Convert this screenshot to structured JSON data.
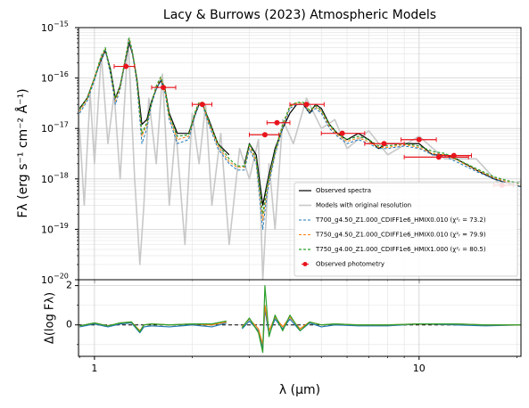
{
  "chart_data": [
    {
      "type": "line",
      "title": "Lacy & Burrows (2023) Atmospheric Models",
      "ylabel": "Fλ (erg s⁻¹ cm⁻² Å⁻¹)",
      "xlog": true,
      "ylog": true,
      "grid": true,
      "legend": "lower right",
      "xlim": [
        0.893,
        20.6
      ],
      "ylim": [
        1e-20,
        1e-15
      ],
      "xticks": [
        1,
        10
      ],
      "xminor": [
        0.9,
        2,
        3,
        4,
        5,
        6,
        7,
        8,
        9,
        20
      ],
      "yticks": [
        {
          "value": 1e-20,
          "label": "10",
          "power": "−20"
        },
        {
          "value": 1e-19,
          "label": "10",
          "power": "−19"
        },
        {
          "value": 1e-18,
          "label": "10",
          "power": "−18"
        },
        {
          "value": 1e-17,
          "label": "10",
          "power": "−17"
        },
        {
          "value": 1e-16,
          "label": "10",
          "power": "−16"
        },
        {
          "value": 1e-15,
          "label": "10",
          "power": "−15"
        }
      ],
      "yminor": [
        2e-20,
        3e-20,
        4e-20,
        5e-20,
        6e-20,
        7e-20,
        8e-20,
        9e-20,
        2e-19,
        3e-19,
        4e-19,
        5e-19,
        6e-19,
        7e-19,
        8e-19,
        9e-19,
        2e-18,
        3e-18,
        4e-18,
        5e-18,
        6e-18,
        7e-18,
        8e-18,
        9e-18,
        2e-17,
        3e-17,
        4e-17,
        5e-17,
        6e-17,
        7e-17,
        8e-17,
        9e-17,
        2e-16,
        3e-16,
        4e-16,
        5e-16,
        6e-16,
        7e-16,
        8e-16,
        9e-16
      ],
      "x": [
        0.9,
        0.95,
        1.0,
        1.04,
        1.08,
        1.12,
        1.16,
        1.2,
        1.25,
        1.28,
        1.31,
        1.35,
        1.4,
        1.45,
        1.5,
        1.55,
        1.6,
        1.65,
        1.7,
        1.8,
        1.95,
        2.05,
        2.1,
        2.15,
        2.25,
        2.4,
        2.6,
        2.75,
        2.9,
        3.0,
        3.15,
        3.3,
        3.4,
        3.6,
        3.8,
        4.0,
        4.2,
        4.4,
        4.6,
        4.8,
        5.0,
        5.3,
        5.6,
        6.0,
        6.5,
        7.0,
        7.5,
        8.0,
        9.0,
        10,
        11,
        12,
        13,
        15,
        17,
        19,
        20.6
      ],
      "series": [
        {
          "name": "Observed spectra",
          "color": "#000000",
          "width": 1.2,
          "values": [
            2.5e-17,
            4e-17,
            1e-16,
            2e-16,
            3.5e-16,
            1.5e-16,
            4e-17,
            7e-17,
            2.5e-16,
            5e-16,
            3e-16,
            1e-16,
            1.2e-17,
            1.5e-17,
            3.5e-17,
            6e-17,
            9e-17,
            6e-17,
            2e-17,
            8e-18,
            8e-18,
            2e-17,
            3e-17,
            3e-17,
            1.5e-17,
            5e-18,
            3e-18,
            null,
            2e-18,
            5e-18,
            3e-18,
            3e-19,
            8e-19,
            4e-18,
            1e-17,
            2e-17,
            3e-17,
            3e-17,
            2e-17,
            3e-17,
            2.5e-17,
            1.2e-17,
            8e-18,
            6e-18,
            8e-18,
            6e-18,
            4e-18,
            5e-18,
            5e-18,
            5e-18,
            3e-18,
            3e-18,
            2.5e-18,
            1.5e-18,
            1e-18,
            8e-19,
            7e-19
          ]
        },
        {
          "name": "Models with original resolution",
          "color": "#c8c8c8",
          "width": 1.6,
          "background": true,
          "x": [
            0.9,
            0.93,
            0.97,
            1.0,
            1.05,
            1.1,
            1.15,
            1.2,
            1.27,
            1.33,
            1.38,
            1.42,
            1.47,
            1.55,
            1.62,
            1.7,
            1.78,
            1.9,
            2.0,
            2.1,
            2.2,
            2.3,
            2.45,
            2.6,
            2.8,
            3.0,
            3.2,
            3.3,
            3.45,
            3.6,
            3.8,
            4.1,
            4.5,
            5.0,
            5.5,
            6.0,
            7.0,
            8.0,
            10,
            12,
            15,
            18,
            20.6
          ],
          "values": [
            1e-17,
            3e-19,
            5e-17,
            2e-18,
            3e-16,
            5e-18,
            5e-17,
            1e-18,
            6e-16,
            1e-18,
            2e-20,
            3e-19,
            4e-17,
            2e-18,
            1.2e-16,
            3e-19,
            1e-17,
            5e-20,
            2e-17,
            2e-18,
            3e-17,
            3e-19,
            8e-18,
            5e-20,
            4e-18,
            1e-18,
            6e-18,
            1e-20,
            2e-18,
            1e-19,
            1.5e-17,
            5e-18,
            4e-17,
            1e-17,
            1.5e-17,
            4e-18,
            9e-18,
            3e-18,
            7e-18,
            2.5e-18,
            2.5e-18,
            7e-19,
            9e-19
          ]
        },
        {
          "name": "T700_g4.50_Z1.000_CDIFF1e6_HMIX0.010 (χ²ᵣ = 73.2)",
          "color": "#1f77b4",
          "dash": true,
          "width": 1,
          "values": [
            2e-17,
            3.5e-17,
            9e-17,
            2e-16,
            3.5e-16,
            1.2e-16,
            3e-17,
            6e-17,
            2.5e-16,
            5.5e-16,
            3e-16,
            8e-17,
            5e-18,
            1e-17,
            3e-17,
            6e-17,
            9e-17,
            5e-17,
            1.5e-17,
            5e-18,
            6e-18,
            2e-17,
            3e-17,
            3e-17,
            1.2e-17,
            4e-18,
            2e-18,
            1.5e-18,
            1.5e-18,
            4e-18,
            2e-18,
            1e-19,
            5e-19,
            3e-18,
            1e-17,
            2.5e-17,
            3e-17,
            3e-17,
            2e-17,
            2.5e-17,
            2e-17,
            1e-17,
            7e-18,
            5e-18,
            6e-18,
            5e-18,
            4e-18,
            4e-18,
            4.5e-18,
            4e-18,
            3e-18,
            2.8e-18,
            2.2e-18,
            1.4e-18,
            1e-18,
            8e-19,
            7e-19
          ]
        },
        {
          "name": "T750_g4.50_Z1.000_CDIFF1e6_HMIX0.010 (χ²ᵣ = 79.9)",
          "color": "#ff7f0e",
          "dash": true,
          "width": 1,
          "values": [
            2.2e-17,
            3.8e-17,
            1e-16,
            2.2e-16,
            3.8e-16,
            1.3e-16,
            3.5e-17,
            6.5e-17,
            2.7e-16,
            6e-16,
            3.2e-16,
            9e-17,
            7e-18,
            1.2e-17,
            3.2e-17,
            6.5e-17,
            1e-16,
            5.5e-17,
            1.7e-17,
            6e-18,
            7e-18,
            2.2e-17,
            3.2e-17,
            3.2e-17,
            1.3e-17,
            4.5e-18,
            2.2e-18,
            1.7e-18,
            1.7e-18,
            4.5e-18,
            2.2e-18,
            1.5e-19,
            6e-19,
            3.2e-18,
            1.1e-17,
            2.7e-17,
            3.2e-17,
            3.2e-17,
            2.2e-17,
            2.7e-17,
            2.2e-17,
            1.1e-17,
            7.5e-18,
            5.5e-18,
            6.5e-18,
            5.5e-18,
            4.2e-18,
            4.2e-18,
            4.8e-18,
            4.2e-18,
            3.2e-18,
            3e-18,
            2.4e-18,
            1.5e-18,
            1.05e-18,
            8.5e-19,
            7.5e-19
          ]
        },
        {
          "name": "T750_g4.00_Z1.000_CDIFF1e6_HMIX1.000 (χ²ᵣ = 80.5)",
          "color": "#2ca02c",
          "dash": true,
          "width": 1.2,
          "values": [
            2.4e-17,
            4e-17,
            1e-16,
            2.3e-16,
            4e-16,
            1.4e-16,
            4e-17,
            7e-17,
            2.8e-16,
            6.2e-16,
            3.3e-16,
            1e-16,
            8e-18,
            1.3e-17,
            3.3e-17,
            7e-17,
            1.05e-16,
            6e-17,
            1.8e-17,
            7e-18,
            7.5e-18,
            2.3e-17,
            3.3e-17,
            3.3e-17,
            1.4e-17,
            5e-18,
            2.5e-18,
            1.8e-18,
            1.8e-18,
            5e-18,
            2.5e-18,
            2e-19,
            7e-19,
            3.5e-18,
            1.2e-17,
            2.8e-17,
            3.3e-17,
            3.3e-17,
            2.3e-17,
            2.8e-17,
            2.3e-17,
            1.2e-17,
            8e-18,
            6e-18,
            7e-18,
            6e-18,
            4.5e-18,
            4.5e-18,
            5e-18,
            4.5e-18,
            3.5e-18,
            3.2e-18,
            2.5e-18,
            1.6e-18,
            1.1e-18,
            9e-19,
            8e-19
          ]
        }
      ],
      "photometry": {
        "name": "Observed photometry",
        "color": "#e8141c",
        "x": [
          1.25,
          1.63,
          2.15,
          3.35,
          3.65,
          4.5,
          5.8,
          7.8,
          10.0,
          11.5,
          12.8,
          18.0
        ],
        "values": [
          1.7e-16,
          6.5e-17,
          3e-17,
          7.5e-18,
          1.3e-17,
          3e-17,
          8e-18,
          5e-18,
          6e-18,
          2.7e-18,
          2.9e-18,
          7.5e-19
        ],
        "xmin": [
          1.15,
          1.5,
          2.0,
          3.0,
          3.4,
          4.0,
          5.0,
          6.8,
          8.8,
          9.0,
          11.5,
          17.0
        ],
        "xmax": [
          1.33,
          1.78,
          2.3,
          3.7,
          4.0,
          5.1,
          6.8,
          9.0,
          11.3,
          14.2,
          14.5,
          19.5
        ]
      }
    },
    {
      "type": "line",
      "ylabel": "Δ(log Fλ)",
      "xlabel": "λ (μm)",
      "xlog": true,
      "ylog": false,
      "grid": true,
      "show_xtick_labels": true,
      "reference_line": 0,
      "xlim": [
        0.893,
        20.6
      ],
      "ylim": [
        -1.6,
        2.3
      ],
      "xticks": [
        1,
        10
      ],
      "xminor": [
        0.9,
        2,
        3,
        4,
        5,
        6,
        7,
        8,
        9,
        20
      ],
      "yticks": [
        0,
        2
      ],
      "yminor": [
        -1,
        1
      ],
      "x": [
        0.9,
        1.0,
        1.1,
        1.2,
        1.3,
        1.38,
        1.42,
        1.5,
        1.7,
        2.0,
        2.3,
        2.55,
        2.7,
        2.85,
        3.0,
        3.2,
        3.3,
        3.35,
        3.45,
        3.6,
        3.8,
        4.0,
        4.3,
        4.6,
        5.0,
        5.5,
        6.5,
        8,
        10,
        13,
        16,
        20.6
      ],
      "series": [
        {
          "color": "#1f77b4",
          "width": 1.2,
          "values": [
            -0.1,
            0.05,
            -0.1,
            0.05,
            0.1,
            -0.4,
            -0.1,
            -0.05,
            -0.1,
            0.0,
            -0.1,
            0.1,
            null,
            -0.2,
            0.2,
            -0.3,
            -1.2,
            0.8,
            -0.5,
            0.3,
            -0.2,
            0.3,
            -0.3,
            0.1,
            -0.1,
            0.0,
            -0.05,
            -0.05,
            0.05,
            0.0,
            -0.05,
            0.0
          ]
        },
        {
          "color": "#ff7f0e",
          "width": 1.2,
          "values": [
            -0.05,
            0.1,
            -0.05,
            0.1,
            0.15,
            -0.3,
            0.0,
            0.05,
            0.0,
            0.05,
            0.0,
            0.15,
            null,
            -0.1,
            0.3,
            -0.2,
            -1.0,
            1.0,
            -0.3,
            0.4,
            -0.1,
            0.4,
            -0.2,
            0.15,
            0.0,
            0.05,
            0.0,
            0.0,
            0.05,
            0.05,
            0.0,
            0.0
          ]
        },
        {
          "color": "#2ca02c",
          "width": 1.2,
          "values": [
            -0.05,
            0.1,
            -0.05,
            0.1,
            0.15,
            -0.35,
            0.0,
            0.05,
            0.0,
            0.05,
            0.05,
            0.2,
            null,
            -0.15,
            0.35,
            -0.4,
            -1.4,
            2.0,
            -0.6,
            0.5,
            -0.3,
            0.5,
            -0.3,
            0.15,
            0.0,
            0.05,
            0.0,
            0.0,
            0.05,
            0.05,
            0.0,
            0.0
          ]
        }
      ]
    }
  ]
}
